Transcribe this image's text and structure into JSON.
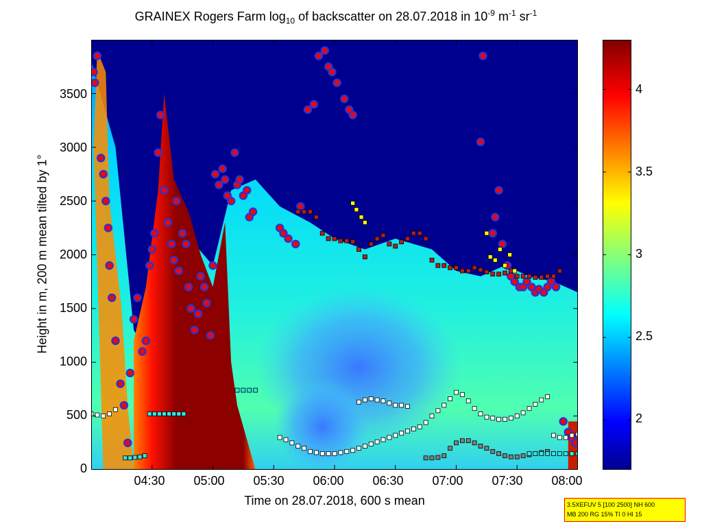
{
  "title": {
    "prefix": "GRAINEX Rogers Farm log",
    "log_base": "10",
    "middle": " of backscatter on 28.07.2018 in 10",
    "exp1": "-9",
    "unit1": " m",
    "exp2": "-1",
    "unit2": " sr",
    "exp3": "-1"
  },
  "info_box": {
    "line1": "3.5XEFUV 5 [100 2500] NH 600",
    "line2": "MB 200 RG 15% TI 0 HI 15"
  },
  "chart_data": {
    "type": "heatmap",
    "xlabel": "Time on 28.07.2018, 600 s mean",
    "ylabel": "Height in m, 200 m mean tilted by 1°",
    "x_ticks": [
      "04:30",
      "05:00",
      "05:30",
      "06:00",
      "06:30",
      "07:00",
      "07:30",
      "08:00"
    ],
    "x_tick_hours": [
      4.5,
      5.0,
      5.5,
      6.0,
      6.5,
      7.0,
      7.5,
      8.0
    ],
    "xlim_hours": [
      4.0,
      8.0
    ],
    "y_ticks": [
      0,
      500,
      1000,
      1500,
      2000,
      2500,
      3000,
      3500
    ],
    "ylim": [
      0,
      4000
    ],
    "colorbar": {
      "ticks": [
        2,
        2.5,
        3,
        3.5,
        4
      ],
      "range": [
        1.7,
        4.3
      ],
      "colormap": "jet"
    },
    "field": {
      "boundary_layer_top_m": [
        [
          4.0,
          3800
        ],
        [
          4.2,
          3000
        ],
        [
          4.35,
          1300
        ],
        [
          4.45,
          1100
        ],
        [
          4.55,
          1600
        ],
        [
          4.7,
          2600
        ],
        [
          4.85,
          2100
        ],
        [
          5.0,
          1900
        ],
        [
          5.15,
          2600
        ],
        [
          5.35,
          2700
        ],
        [
          5.55,
          2450
        ],
        [
          5.8,
          2300
        ],
        [
          6.0,
          2150
        ],
        [
          6.25,
          2050
        ],
        [
          6.5,
          2150
        ],
        [
          6.8,
          2050
        ],
        [
          7.0,
          1850
        ],
        [
          7.2,
          1800
        ],
        [
          7.4,
          1900
        ],
        [
          7.6,
          1800
        ],
        [
          7.8,
          1750
        ],
        [
          8.0,
          1650
        ]
      ],
      "dense_layer_edges_hours": [
        4.35,
        5.35
      ]
    },
    "series": [
      {
        "name": "",
        "marker": "circle",
        "color": "#ff0000",
        "edge": "#3232c8",
        "x": [
          4.02,
          4.03,
          4.05,
          4.08,
          4.1,
          4.12,
          4.14,
          4.15,
          4.17,
          4.2,
          4.24,
          4.27,
          4.3,
          4.32,
          4.35,
          4.38,
          4.42,
          4.45,
          4.48,
          4.5,
          4.52,
          4.55,
          4.57,
          4.6,
          4.63,
          4.66,
          4.68,
          4.7,
          4.72,
          4.75,
          4.78,
          4.8,
          4.82,
          4.85,
          4.88,
          4.9,
          4.93,
          4.95,
          4.98,
          5.0,
          5.02,
          5.05,
          5.08,
          5.1,
          5.12,
          5.15,
          5.18,
          5.2,
          5.22,
          5.25,
          5.28,
          5.3,
          5.33,
          5.55,
          5.58,
          5.62,
          5.68,
          5.72,
          5.78,
          5.83,
          5.87,
          5.92,
          5.95,
          5.98,
          6.02,
          6.08,
          6.12,
          6.15,
          7.2,
          7.22,
          7.3,
          7.32,
          7.35,
          7.38,
          7.42,
          7.45,
          7.48,
          7.52,
          7.55,
          7.58,
          7.62,
          7.65,
          7.68,
          7.72,
          7.75,
          7.78,
          7.82,
          7.88,
          7.92,
          7.95,
          7.98
        ],
        "y": [
          3700,
          3600,
          3850,
          2900,
          2750,
          2500,
          2250,
          1900,
          1600,
          1200,
          800,
          600,
          250,
          900,
          1400,
          1600,
          1100,
          1200,
          1900,
          2050,
          2200,
          2950,
          3300,
          2600,
          2300,
          2100,
          1950,
          2500,
          1850,
          2200,
          2100,
          1700,
          1500,
          1300,
          1450,
          1800,
          1700,
          1550,
          1250,
          1900,
          2750,
          2650,
          2800,
          2700,
          2550,
          2500,
          2950,
          2650,
          2700,
          2550,
          2600,
          2350,
          2400,
          2250,
          2200,
          2150,
          2100,
          2450,
          3350,
          3400,
          3850,
          3900,
          3750,
          3700,
          3600,
          3450,
          3350,
          3300,
          3050,
          3850,
          2200,
          2350,
          2600,
          2100,
          1900,
          1800,
          1750,
          1700,
          1700,
          1750,
          1700,
          1650,
          1680,
          1650,
          1700,
          1750,
          1700,
          450,
          350,
          300,
          250
        ]
      },
      {
        "name": "",
        "marker": "square",
        "color": "#b41e1e",
        "x": [
          5.7,
          5.75,
          5.8,
          5.85,
          5.9,
          5.95,
          6.0,
          6.05,
          6.1,
          6.15,
          6.2,
          6.25,
          6.3,
          6.35,
          6.4,
          6.45,
          6.5,
          6.55,
          6.6,
          6.65,
          6.7,
          6.75,
          6.8,
          6.85,
          6.9,
          6.95,
          7.0,
          7.05,
          7.1,
          7.15,
          7.2,
          7.25,
          7.3,
          7.35,
          7.4,
          7.45,
          7.5,
          7.55,
          7.6,
          7.65,
          7.7,
          7.75,
          7.8,
          7.85
        ],
        "y": [
          2400,
          2400,
          2400,
          2350,
          2200,
          2150,
          2150,
          2130,
          2130,
          2120,
          2050,
          1980,
          2100,
          2150,
          2180,
          2100,
          2080,
          2120,
          2150,
          2200,
          2200,
          2150,
          1950,
          1900,
          1900,
          1880,
          1880,
          1850,
          1850,
          1880,
          1860,
          1840,
          1820,
          1820,
          1830,
          1850,
          1800,
          1800,
          1800,
          1790,
          1790,
          1800,
          1800,
          1850
        ]
      },
      {
        "name": "",
        "marker": "square",
        "color": "#ffffff",
        "x": [
          4.0,
          4.05,
          4.1,
          4.15,
          4.2,
          5.55,
          5.6,
          5.65,
          5.7,
          5.75,
          5.8,
          5.85,
          5.9,
          5.95,
          6.0,
          6.05,
          6.1,
          6.15,
          6.2,
          6.25,
          6.3,
          6.35,
          6.4,
          6.45,
          6.5,
          6.55,
          6.6,
          6.65,
          6.7,
          6.75,
          6.8,
          6.85,
          6.9,
          6.95,
          7.0,
          7.05,
          7.1,
          7.15,
          7.2,
          7.25,
          7.3,
          7.35,
          7.4,
          7.45,
          7.5,
          7.55,
          7.6,
          7.65,
          7.7,
          7.75,
          7.8,
          7.85,
          7.9,
          7.95,
          8.0,
          6.2,
          6.25,
          6.3,
          6.35,
          6.4,
          6.45,
          6.5,
          6.55,
          6.6
        ],
        "y": [
          520,
          510,
          500,
          520,
          560,
          300,
          280,
          250,
          220,
          200,
          170,
          160,
          150,
          150,
          150,
          160,
          170,
          180,
          200,
          220,
          240,
          260,
          280,
          300,
          320,
          340,
          360,
          380,
          400,
          440,
          500,
          550,
          600,
          660,
          720,
          700,
          640,
          570,
          520,
          490,
          480,
          470,
          470,
          480,
          500,
          530,
          570,
          610,
          650,
          680,
          320,
          300,
          300,
          320,
          330,
          630,
          650,
          660,
          650,
          640,
          620,
          600,
          600,
          590
        ]
      },
      {
        "name": "",
        "marker": "square",
        "color": "#7f7f7f",
        "x": [
          6.75,
          6.8,
          6.85,
          6.9,
          6.95,
          7.0,
          7.05,
          7.1,
          7.15,
          7.2,
          7.25,
          7.3,
          7.35,
          7.4,
          7.45,
          7.5,
          7.55,
          7.6,
          7.65,
          7.7,
          7.75
        ],
        "y": [
          110,
          110,
          115,
          130,
          200,
          250,
          270,
          270,
          250,
          220,
          200,
          170,
          150,
          130,
          120,
          120,
          130,
          140,
          150,
          160,
          170
        ]
      },
      {
        "name": "",
        "marker": "square",
        "color": "#32e6e6",
        "x": [
          4.28,
          4.32,
          4.36,
          4.4,
          4.44,
          4.48,
          4.52,
          4.56,
          4.6,
          4.64,
          4.68,
          4.72,
          4.76,
          5.2,
          5.25,
          5.3,
          5.35,
          7.6,
          7.65,
          7.7,
          7.75,
          7.8,
          7.85,
          7.9,
          7.95,
          8.0
        ],
        "y": [
          110,
          110,
          115,
          120,
          130,
          520,
          520,
          520,
          520,
          520,
          520,
          520,
          520,
          740,
          740,
          740,
          740,
          150,
          150,
          150,
          150,
          150,
          150,
          150,
          150,
          150
        ]
      },
      {
        "name": "",
        "marker": "square",
        "color": "#ffff00",
        "x": [
          6.15,
          6.18,
          6.22,
          6.25,
          7.25,
          7.28,
          7.32,
          7.36,
          7.4,
          7.44,
          7.48
        ],
        "y": [
          2480,
          2420,
          2350,
          2300,
          2200,
          1980,
          1950,
          2050,
          1900,
          2000,
          1850
        ]
      }
    ]
  }
}
